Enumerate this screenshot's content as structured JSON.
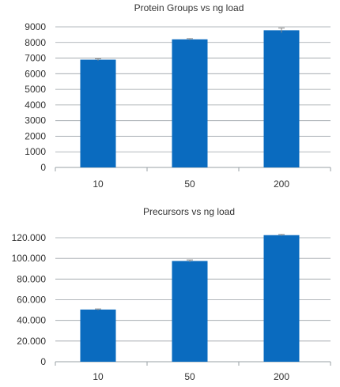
{
  "colors": {
    "bar": "#0a6bbf",
    "grid": "#9aa0a6",
    "text": "#333333"
  },
  "chart_data": [
    {
      "type": "bar",
      "title": "Protein Groups vs ng load",
      "categories": [
        "10",
        "50",
        "200"
      ],
      "values": [
        6900,
        8200,
        8780
      ],
      "errors": [
        60,
        50,
        150
      ],
      "ylim": [
        0,
        9000
      ],
      "yticks": [
        0,
        1000,
        2000,
        3000,
        4000,
        5000,
        6000,
        7000,
        8000,
        9000
      ],
      "ytick_labels": [
        "0",
        "1000",
        "2000",
        "3000",
        "4000",
        "5000",
        "6000",
        "7000",
        "8000",
        "9000"
      ],
      "xlabel": "",
      "ylabel": "",
      "grid": true
    },
    {
      "type": "bar",
      "title": "Precursors vs ng load",
      "categories": [
        "10",
        "50",
        "200"
      ],
      "values": [
        50500,
        97500,
        122500
      ],
      "errors": [
        600,
        1000,
        700
      ],
      "ylim": [
        0,
        120000
      ],
      "yticks": [
        0,
        20000,
        40000,
        60000,
        80000,
        100000,
        120000
      ],
      "ytick_labels": [
        "0",
        "20.000",
        "40.000",
        "60.000",
        "80.000",
        "100.000",
        "120.000"
      ],
      "xlabel": "",
      "ylabel": "",
      "grid": true
    }
  ]
}
